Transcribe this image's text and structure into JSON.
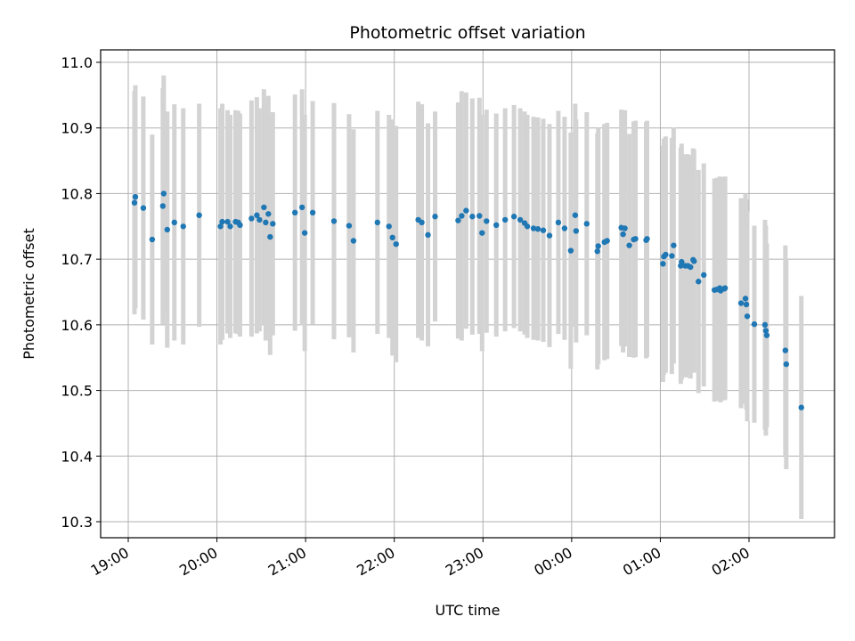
{
  "chart_data": {
    "type": "scatter",
    "title": "Photometric offset variation",
    "xlabel": "UTC time",
    "ylabel": "Photometric offset",
    "x_unit": "hours after 00:00 UTC (spans midnight)",
    "x_tick_labels": [
      "19:00",
      "20:00",
      "21:00",
      "22:00",
      "23:00",
      "00:00",
      "01:00",
      "02:00"
    ],
    "y_ticks": [
      "10.3",
      "10.4",
      "10.5",
      "10.6",
      "10.7",
      "10.8",
      "10.9",
      "11.0"
    ],
    "ylim": [
      10.27,
      11.02
    ],
    "grid": true,
    "colors": {
      "points": "#1f77b4",
      "errorbars": "#d3d3d3",
      "grid": "#b0b0b0"
    },
    "series": [
      {
        "points": [
          [
            19.07,
            10.786,
            0.17
          ],
          [
            19.08,
            10.795,
            0.17
          ],
          [
            19.17,
            10.778,
            0.17
          ],
          [
            19.27,
            10.73,
            0.16
          ],
          [
            19.39,
            10.781,
            0.18
          ],
          [
            19.4,
            10.8,
            0.18
          ],
          [
            19.44,
            10.745,
            0.18
          ],
          [
            19.52,
            10.756,
            0.18
          ],
          [
            19.62,
            10.75,
            0.18
          ],
          [
            19.8,
            10.767,
            0.17
          ],
          [
            20.04,
            10.75,
            0.18
          ],
          [
            20.06,
            10.757,
            0.18
          ],
          [
            20.12,
            10.757,
            0.17
          ],
          [
            20.15,
            10.75,
            0.17
          ],
          [
            20.21,
            10.757,
            0.17
          ],
          [
            20.24,
            10.756,
            0.17
          ],
          [
            20.26,
            10.752,
            0.17
          ],
          [
            20.39,
            10.762,
            0.18
          ],
          [
            20.45,
            10.767,
            0.18
          ],
          [
            20.48,
            10.76,
            0.17
          ],
          [
            20.53,
            10.779,
            0.18
          ],
          [
            20.55,
            10.756,
            0.18
          ],
          [
            20.58,
            10.769,
            0.18
          ],
          [
            20.6,
            10.734,
            0.18
          ],
          [
            20.63,
            10.754,
            0.17
          ],
          [
            20.88,
            10.771,
            0.18
          ],
          [
            20.96,
            10.779,
            0.18
          ],
          [
            20.99,
            10.74,
            0.18
          ],
          [
            21.08,
            10.771,
            0.17
          ],
          [
            21.32,
            10.758,
            0.18
          ],
          [
            21.49,
            10.751,
            0.17
          ],
          [
            21.54,
            10.728,
            0.17
          ],
          [
            21.81,
            10.756,
            0.17
          ],
          [
            21.94,
            10.75,
            0.17
          ],
          [
            21.98,
            10.733,
            0.18
          ],
          [
            22.02,
            10.723,
            0.18
          ],
          [
            22.27,
            10.76,
            0.18
          ],
          [
            22.31,
            10.756,
            0.18
          ],
          [
            22.38,
            10.737,
            0.17
          ],
          [
            22.46,
            10.765,
            0.16
          ],
          [
            22.72,
            10.759,
            0.18
          ],
          [
            22.76,
            10.766,
            0.19
          ],
          [
            22.81,
            10.774,
            0.18
          ],
          [
            22.88,
            10.765,
            0.18
          ],
          [
            22.96,
            10.766,
            0.18
          ],
          [
            22.99,
            10.74,
            0.18
          ],
          [
            23.04,
            10.758,
            0.17
          ],
          [
            23.15,
            10.752,
            0.17
          ],
          [
            23.25,
            10.76,
            0.17
          ],
          [
            23.35,
            10.765,
            0.17
          ],
          [
            23.42,
            10.76,
            0.17
          ],
          [
            23.47,
            10.755,
            0.17
          ],
          [
            23.5,
            10.75,
            0.17
          ],
          [
            23.57,
            10.747,
            0.17
          ],
          [
            23.62,
            10.746,
            0.17
          ],
          [
            23.68,
            10.744,
            0.17
          ],
          [
            23.75,
            10.736,
            0.17
          ],
          [
            23.85,
            10.756,
            0.17
          ],
          [
            23.92,
            10.747,
            0.17
          ],
          [
            23.99,
            10.713,
            0.18
          ],
          [
            24.04,
            10.767,
            0.17
          ],
          [
            24.05,
            10.743,
            0.17
          ],
          [
            24.17,
            10.754,
            0.17
          ],
          [
            24.29,
            10.712,
            0.18
          ],
          [
            24.3,
            10.72,
            0.18
          ],
          [
            24.37,
            10.726,
            0.18
          ],
          [
            24.4,
            10.728,
            0.18
          ],
          [
            24.56,
            10.748,
            0.18
          ],
          [
            24.58,
            10.738,
            0.18
          ],
          [
            24.6,
            10.747,
            0.18
          ],
          [
            24.65,
            10.721,
            0.17
          ],
          [
            24.7,
            10.73,
            0.18
          ],
          [
            24.72,
            10.731,
            0.18
          ],
          [
            24.84,
            10.729,
            0.18
          ],
          [
            24.85,
            10.731,
            0.18
          ],
          [
            25.03,
            10.693,
            0.18
          ],
          [
            25.04,
            10.704,
            0.18
          ],
          [
            25.06,
            10.707,
            0.18
          ],
          [
            25.13,
            10.705,
            0.18
          ],
          [
            25.15,
            10.721,
            0.18
          ],
          [
            25.23,
            10.69,
            0.18
          ],
          [
            25.24,
            10.696,
            0.18
          ],
          [
            25.28,
            10.69,
            0.17
          ],
          [
            25.31,
            10.69,
            0.17
          ],
          [
            25.34,
            10.688,
            0.17
          ],
          [
            25.37,
            10.699,
            0.17
          ],
          [
            25.38,
            10.697,
            0.17
          ],
          [
            25.43,
            10.666,
            0.17
          ],
          [
            25.49,
            10.676,
            0.17
          ],
          [
            25.61,
            10.653,
            0.17
          ],
          [
            25.64,
            10.654,
            0.17
          ],
          [
            25.67,
            10.656,
            0.17
          ],
          [
            25.68,
            10.652,
            0.17
          ],
          [
            25.72,
            10.655,
            0.17
          ],
          [
            25.73,
            10.656,
            0.17
          ],
          [
            25.91,
            10.633,
            0.16
          ],
          [
            25.96,
            10.64,
            0.16
          ],
          [
            25.97,
            10.631,
            0.16
          ],
          [
            25.98,
            10.613,
            0.16
          ],
          [
            26.06,
            10.601,
            0.15
          ],
          [
            26.18,
            10.6,
            0.16
          ],
          [
            26.19,
            10.591,
            0.16
          ],
          [
            26.2,
            10.584,
            0.14
          ],
          [
            26.41,
            10.561,
            0.16
          ],
          [
            26.42,
            10.54,
            0.16
          ],
          [
            26.59,
            10.474,
            0.17
          ]
        ]
      }
    ]
  }
}
